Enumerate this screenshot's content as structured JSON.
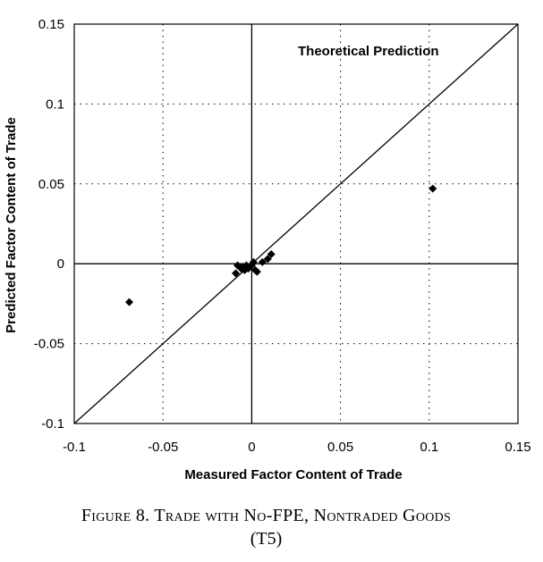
{
  "chart_data": {
    "type": "scatter",
    "xlabel": "Measured Factor Content of Trade",
    "ylabel": "Predicted Factor Content of Trade",
    "xlim": [
      -0.1,
      0.15
    ],
    "ylim": [
      -0.1,
      0.15
    ],
    "xticks": [
      "-0.1",
      "-0.05",
      "0",
      "0.05",
      "0.1",
      "0.15"
    ],
    "yticks": [
      "-0.1",
      "-0.05",
      "0",
      "0.05",
      "0.1",
      "0.15"
    ],
    "grid": "dotted",
    "reference_line": {
      "label": "Theoretical Prediction",
      "from": [
        -0.1,
        -0.1
      ],
      "to": [
        0.15,
        0.15
      ]
    },
    "points": [
      {
        "x": -0.069,
        "y": -0.024
      },
      {
        "x": 0.102,
        "y": 0.047
      },
      {
        "x": -0.009,
        "y": -0.006
      },
      {
        "x": -0.008,
        "y": -0.001
      },
      {
        "x": -0.006,
        "y": -0.003
      },
      {
        "x": -0.005,
        "y": -0.002
      },
      {
        "x": -0.004,
        "y": -0.004
      },
      {
        "x": -0.003,
        "y": -0.001
      },
      {
        "x": -0.002,
        "y": -0.003
      },
      {
        "x": -0.001,
        "y": -0.002
      },
      {
        "x": 0.0,
        "y": -0.001
      },
      {
        "x": 0.001,
        "y": 0.001
      },
      {
        "x": 0.002,
        "y": -0.004
      },
      {
        "x": 0.003,
        "y": -0.005
      },
      {
        "x": 0.006,
        "y": 0.001
      },
      {
        "x": 0.009,
        "y": 0.003
      },
      {
        "x": 0.011,
        "y": 0.006
      }
    ]
  },
  "caption": {
    "line1": "Figure 8.  Trade with No-FPE, Nontraded Goods",
    "line2": "(T5)"
  }
}
